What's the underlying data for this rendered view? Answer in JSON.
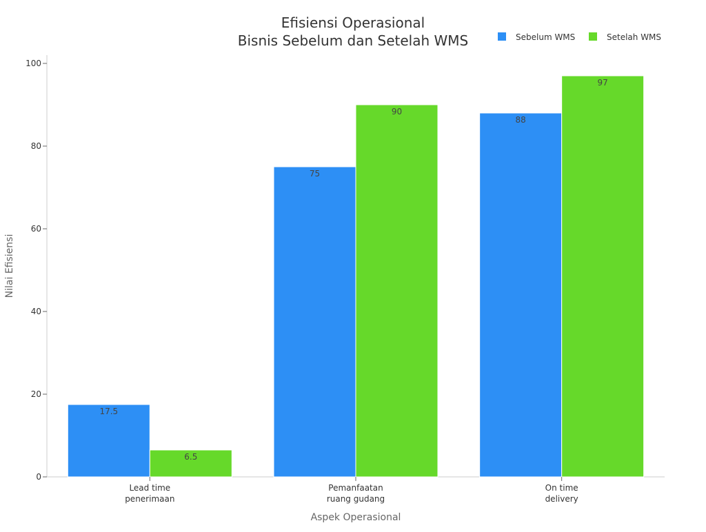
{
  "chart_data": {
    "type": "bar",
    "title_lines": [
      "Efisiensi Operasional",
      "Bisnis Sebelum dan Setelah WMS"
    ],
    "xlabel": "Aspek Operasional",
    "ylabel": "Nilai Efisiensi",
    "categories": [
      [
        "Lead time",
        "penerimaan"
      ],
      [
        "Pemanfaatan",
        "ruang gudang"
      ],
      [
        "On time",
        "delivery"
      ]
    ],
    "series": [
      {
        "name": "Sebelum WMS",
        "color": "#2d8ff5",
        "values": [
          17.5,
          75,
          88
        ],
        "labels": [
          "17.5",
          "75",
          "88"
        ]
      },
      {
        "name": "Setelah WMS",
        "color": "#66d92a",
        "values": [
          6.5,
          90,
          97
        ],
        "labels": [
          "6.5",
          "90",
          "97"
        ]
      }
    ],
    "ylim": [
      0,
      102
    ],
    "yticks": [
      0,
      20,
      40,
      60,
      80,
      100
    ],
    "grid": false,
    "legend": "top-right"
  }
}
